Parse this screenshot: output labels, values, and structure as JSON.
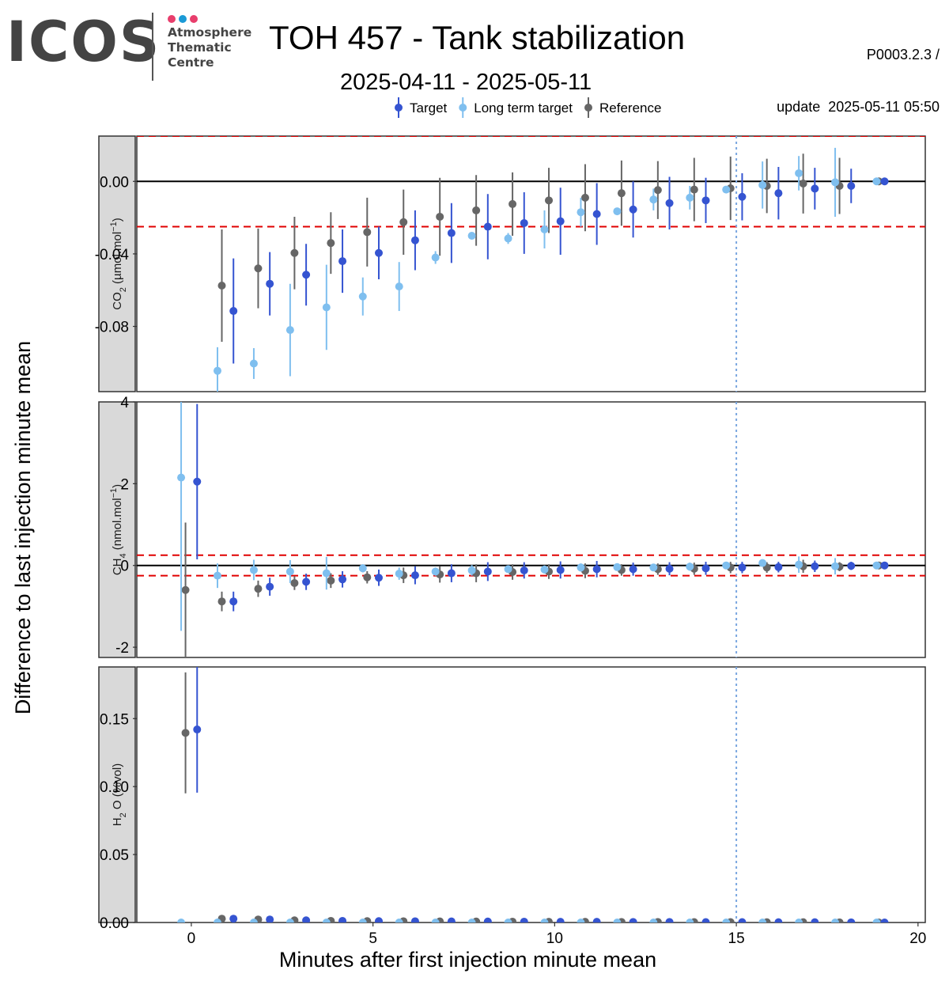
{
  "header": {
    "logo_text": "ICOS",
    "logo_lines": [
      "Atmosphere",
      "Thematic",
      "Centre"
    ],
    "logo_dot_colors": [
      "#e83e6c",
      "#1a9ad6",
      "#e83e6c"
    ],
    "title": "TOH 457 - Tank stabilization",
    "subtitle": "2025-04-11 - 2025-05-11",
    "meta_line1": "P0003.2.3 /",
    "meta_line2": "update  2025-05-11 05:50"
  },
  "chart_data": {
    "type": "scatter",
    "style": "point with vertical error bars, series dodged horizontally",
    "xlabel": "Minutes after first injection minute mean",
    "ylabel": "Difference to last injection minute mean",
    "xlim": [
      -1.5,
      20.2
    ],
    "x_ticks": [
      0,
      5,
      10,
      15,
      20
    ],
    "x": [
      0,
      1,
      2,
      3,
      4,
      5,
      6,
      7,
      8,
      9,
      10,
      11,
      12,
      13,
      14,
      15,
      16,
      17,
      18,
      19
    ],
    "vertical_reference_line": 15,
    "legend": {
      "position": "top",
      "entries": [
        {
          "name": "Target",
          "color": "#3554d1"
        },
        {
          "name": "Long term target",
          "color": "#7fbfef"
        },
        {
          "name": "Reference",
          "color": "#666666"
        }
      ]
    },
    "panels": [
      {
        "strip_main": "CO",
        "strip_sub": "2",
        "strip_unit": "(µmol.mol",
        "strip_sup": "−1",
        "strip_end": ")",
        "ylim": [
          -0.116,
          0.025
        ],
        "y_ticks": [
          0.0,
          -0.04,
          -0.08
        ],
        "y_tick_labels": [
          "0.00",
          "-0.04",
          "-0.08"
        ],
        "zero_line": 0,
        "threshold_lines": [
          -0.025,
          0.025
        ],
        "series": [
          {
            "name": "Reference",
            "mean": [
              null,
              -0.0575,
              -0.048,
              -0.0395,
              -0.034,
              -0.028,
              -0.0225,
              -0.0195,
              -0.016,
              -0.0125,
              -0.0105,
              -0.009,
              -0.0065,
              -0.0048,
              -0.0045,
              -0.0038,
              -0.0025,
              -0.0012,
              -0.0025,
              0.0
            ],
            "err": [
              null,
              0.031,
              0.022,
              0.02,
              0.017,
              0.019,
              0.018,
              0.0215,
              0.0195,
              0.0175,
              0.018,
              0.0185,
              0.018,
              0.016,
              0.0175,
              0.0175,
              0.015,
              0.0165,
              0.0155,
              0.0
            ]
          },
          {
            "name": "Long term target",
            "mean": [
              null,
              -0.1045,
              -0.1005,
              -0.082,
              -0.0695,
              -0.0635,
              -0.058,
              -0.042,
              -0.03,
              -0.0315,
              -0.0265,
              -0.017,
              -0.0165,
              -0.01,
              -0.009,
              -0.0045,
              -0.002,
              0.0045,
              -0.0005,
              0.0
            ],
            "err": [
              null,
              0.013,
              0.0085,
              0.0255,
              0.0235,
              0.0105,
              0.0135,
              0.0035,
              0.0005,
              0.003,
              0.0105,
              0.008,
              0.0,
              0.006,
              0.0065,
              0.0005,
              0.013,
              0.0095,
              0.019,
              0.0
            ]
          },
          {
            "name": "Target",
            "mean": [
              null,
              -0.0715,
              -0.0565,
              -0.0515,
              -0.044,
              -0.0395,
              -0.0325,
              -0.0285,
              -0.025,
              -0.023,
              -0.022,
              -0.018,
              -0.0155,
              -0.012,
              -0.0105,
              -0.0085,
              -0.0065,
              -0.004,
              -0.0025,
              0.0
            ],
            "err": [
              null,
              0.029,
              0.0175,
              0.017,
              0.0175,
              0.0145,
              0.0165,
              0.0165,
              0.018,
              0.017,
              0.0185,
              0.017,
              0.0155,
              0.0145,
              0.0125,
              0.013,
              0.0145,
              0.0115,
              0.0095,
              0.0
            ]
          }
        ]
      },
      {
        "strip_main": "CH",
        "strip_sub": "4",
        "strip_unit": "(nmol.mol",
        "strip_sup": "−1",
        "strip_end": ")",
        "ylim": [
          -2.25,
          4.0
        ],
        "y_ticks": [
          4,
          2,
          0,
          -2
        ],
        "y_tick_labels": [
          "4",
          "2",
          "0",
          "-2"
        ],
        "zero_line": 0,
        "threshold_lines": [
          0.25,
          -0.25
        ],
        "series": [
          {
            "name": "Reference",
            "mean": [
              -0.6,
              -0.88,
              -0.57,
              -0.43,
              -0.37,
              -0.29,
              -0.24,
              -0.22,
              -0.19,
              -0.16,
              -0.15,
              -0.13,
              -0.11,
              -0.09,
              -0.08,
              -0.05,
              -0.05,
              -0.02,
              -0.03,
              0.0
            ],
            "err": [
              1.65,
              0.24,
              0.2,
              0.17,
              0.18,
              0.15,
              0.19,
              0.2,
              0.22,
              0.19,
              0.18,
              0.18,
              0.14,
              0.14,
              0.15,
              0.14,
              0.13,
              0.16,
              0.11,
              0.0
            ]
          },
          {
            "name": "Long term target",
            "mean": [
              2.15,
              -0.25,
              -0.11,
              -0.15,
              -0.19,
              -0.07,
              -0.2,
              -0.15,
              -0.12,
              -0.09,
              -0.1,
              -0.05,
              -0.04,
              -0.05,
              -0.03,
              0.0,
              0.06,
              0.02,
              -0.02,
              0.0
            ],
            "err": [
              3.75,
              0.3,
              0.25,
              0.28,
              0.4,
              0.1,
              0.15,
              0.1,
              0.13,
              0.05,
              0.1,
              0.1,
              0.05,
              0.08,
              0.1,
              0.05,
              0.07,
              0.2,
              0.2,
              0.0
            ]
          },
          {
            "name": "Target",
            "mean": [
              2.05,
              -0.88,
              -0.52,
              -0.4,
              -0.34,
              -0.3,
              -0.24,
              -0.19,
              -0.15,
              -0.12,
              -0.11,
              -0.09,
              -0.09,
              -0.08,
              -0.07,
              -0.05,
              -0.04,
              -0.02,
              -0.01,
              0.0
            ],
            "err": [
              1.9,
              0.24,
              0.22,
              0.2,
              0.2,
              0.2,
              0.22,
              0.22,
              0.23,
              0.2,
              0.21,
              0.2,
              0.16,
              0.16,
              0.16,
              0.14,
              0.13,
              0.14,
              0.1,
              0.0
            ]
          }
        ]
      },
      {
        "strip_main": "H",
        "strip_sub": "2",
        "strip_unit": "O (%vol)",
        "strip_sup": "",
        "strip_end": "",
        "ylim": [
          0.0,
          0.188
        ],
        "y_ticks": [
          0.15,
          0.1,
          0.05,
          0.0
        ],
        "y_tick_labels": [
          "0.15",
          "0.10",
          "0.05",
          "0.00"
        ],
        "zero_line": null,
        "threshold_lines": [],
        "series": [
          {
            "name": "Reference",
            "mean": [
              0.1395,
              0.0028,
              0.0022,
              0.0016,
              0.0012,
              0.001,
              0.0009,
              0.0008,
              0.0007,
              0.0006,
              0.0005,
              0.0005,
              0.0004,
              0.0004,
              0.0003,
              0.0003,
              0.0002,
              0.0002,
              0.0001,
              0.0
            ],
            "err": [
              0.0445,
              0.001,
              0.0008,
              0.0006,
              0.0005,
              0.0004,
              0.0004,
              0.0003,
              0.0003,
              0.0003,
              0.0002,
              0.0002,
              0.0002,
              0.0002,
              0.0002,
              0.0001,
              0.0001,
              0.0001,
              0.0001,
              0.0
            ]
          },
          {
            "name": "Long term target",
            "mean": [
              0.0,
              0.0,
              0.0,
              0.0,
              0.0,
              0.0,
              0.0,
              0.0,
              0.0,
              0.0,
              0.0,
              0.0,
              0.0,
              0.0,
              0.0,
              0.0,
              0.0,
              0.0,
              0.0,
              0.0
            ],
            "err": [
              0.0,
              0.0,
              0.0,
              0.0,
              0.0,
              0.0,
              0.0,
              0.0,
              0.0,
              0.0,
              0.0,
              0.0,
              0.0,
              0.0,
              0.0,
              0.0,
              0.0,
              0.0,
              0.0,
              0.0
            ]
          },
          {
            "name": "Target",
            "mean": [
              0.142,
              0.0028,
              0.0022,
              0.0016,
              0.0012,
              0.001,
              0.0009,
              0.0008,
              0.0007,
              0.0006,
              0.0005,
              0.0005,
              0.0004,
              0.0004,
              0.0003,
              0.0003,
              0.0002,
              0.0002,
              0.0001,
              0.0
            ],
            "err": [
              0.0465,
              0.001,
              0.0008,
              0.0006,
              0.0005,
              0.0004,
              0.0004,
              0.0003,
              0.0003,
              0.0003,
              0.0002,
              0.0002,
              0.0002,
              0.0002,
              0.0002,
              0.0001,
              0.0001,
              0.0001,
              0.0001,
              0.0
            ]
          }
        ]
      }
    ]
  }
}
